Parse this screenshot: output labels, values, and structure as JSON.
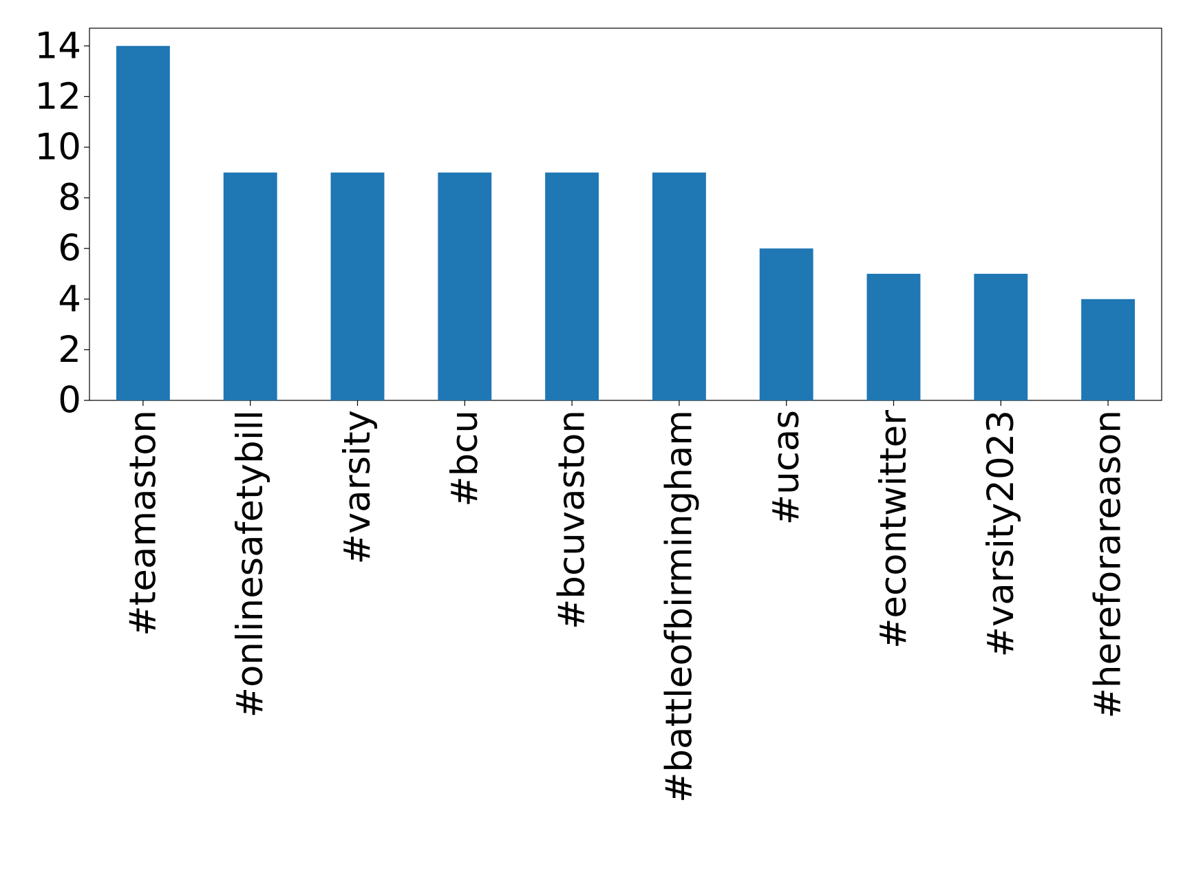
{
  "chart_data": {
    "type": "bar",
    "categories": [
      "#teamaston",
      "#onlinesafetybill",
      "#varsity",
      "#bcu",
      "#bcuvaston",
      "#battleofbirmingham",
      "#ucas",
      "#econtwitter",
      "#varsity2023",
      "#hereforareason"
    ],
    "values": [
      14,
      9,
      9,
      9,
      9,
      9,
      6,
      5,
      5,
      4
    ],
    "color": "#1f77b4",
    "ylim": [
      0,
      14.7
    ],
    "yticks": [
      0,
      2,
      4,
      6,
      8,
      10,
      12,
      14
    ],
    "grid": false
  }
}
